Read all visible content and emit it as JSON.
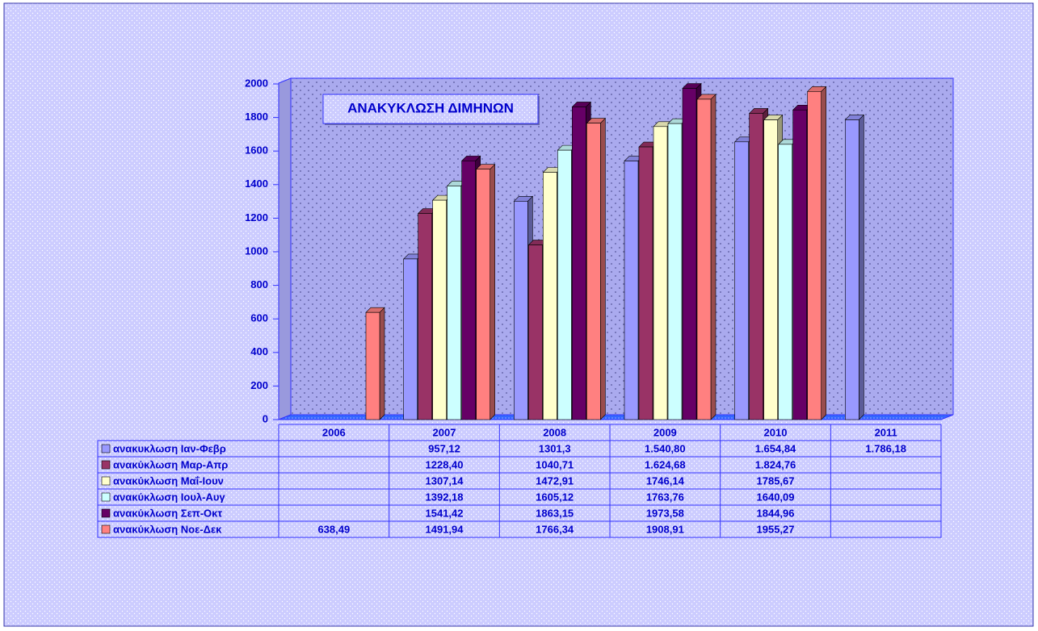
{
  "chart_data": {
    "type": "bar",
    "title": "ΑΝΑΚΥΚΛΩΣΗ ΔΙΜΗΝΩΝ",
    "categories": [
      "2006",
      "2007",
      "2008",
      "2009",
      "2010",
      "2011"
    ],
    "ylim": [
      0,
      2000
    ],
    "yticks": [
      0,
      200,
      400,
      600,
      800,
      1000,
      1200,
      1400,
      1600,
      1800,
      2000
    ],
    "series": [
      {
        "name": "ανακυκλωση Ιαν-Φεβρ",
        "color": "#9999ff",
        "values": [
          null,
          957.12,
          1301.3,
          1540.8,
          1654.84,
          1786.18
        ],
        "value_labels": [
          null,
          "957,12",
          "1301,3",
          "1.540,80",
          "1.654,84",
          "1.786,18"
        ]
      },
      {
        "name": "ανακύκλωση Μαρ-Απρ",
        "color": "#993366",
        "values": [
          null,
          1228.4,
          1040.71,
          1624.68,
          1824.76,
          null
        ],
        "value_labels": [
          null,
          "1228,40",
          "1040,71",
          "1.624,68",
          "1.824,76",
          null
        ]
      },
      {
        "name": "ανακύκλωση Μαΐ-Ιουν",
        "color": "#ffffcc",
        "values": [
          null,
          1307.14,
          1472.91,
          1746.14,
          1785.67,
          null
        ],
        "value_labels": [
          null,
          "1307,14",
          "1472,91",
          "1746,14",
          "1785,67",
          null
        ]
      },
      {
        "name": "ανακύκλωση Ιουλ-Αυγ",
        "color": "#ccffff",
        "values": [
          null,
          1392.18,
          1605.12,
          1763.76,
          1640.09,
          null
        ],
        "value_labels": [
          null,
          "1392,18",
          "1605,12",
          "1763,76",
          "1640,09",
          null
        ]
      },
      {
        "name": "ανακύκλωση Σεπ-Οκτ",
        "color": "#660066",
        "values": [
          null,
          1541.42,
          1863.15,
          1973.58,
          1844.96,
          null
        ],
        "value_labels": [
          null,
          "1541,42",
          "1863,15",
          "1973,58",
          "1844,96",
          null
        ]
      },
      {
        "name": "ανακύκλωση Νοε-Δεκ",
        "color": "#ff8080",
        "values": [
          638.49,
          1491.94,
          1766.34,
          1908.91,
          1955.27,
          null
        ],
        "value_labels": [
          null,
          null,
          null,
          null,
          null,
          null
        ]
      }
    ]
  }
}
